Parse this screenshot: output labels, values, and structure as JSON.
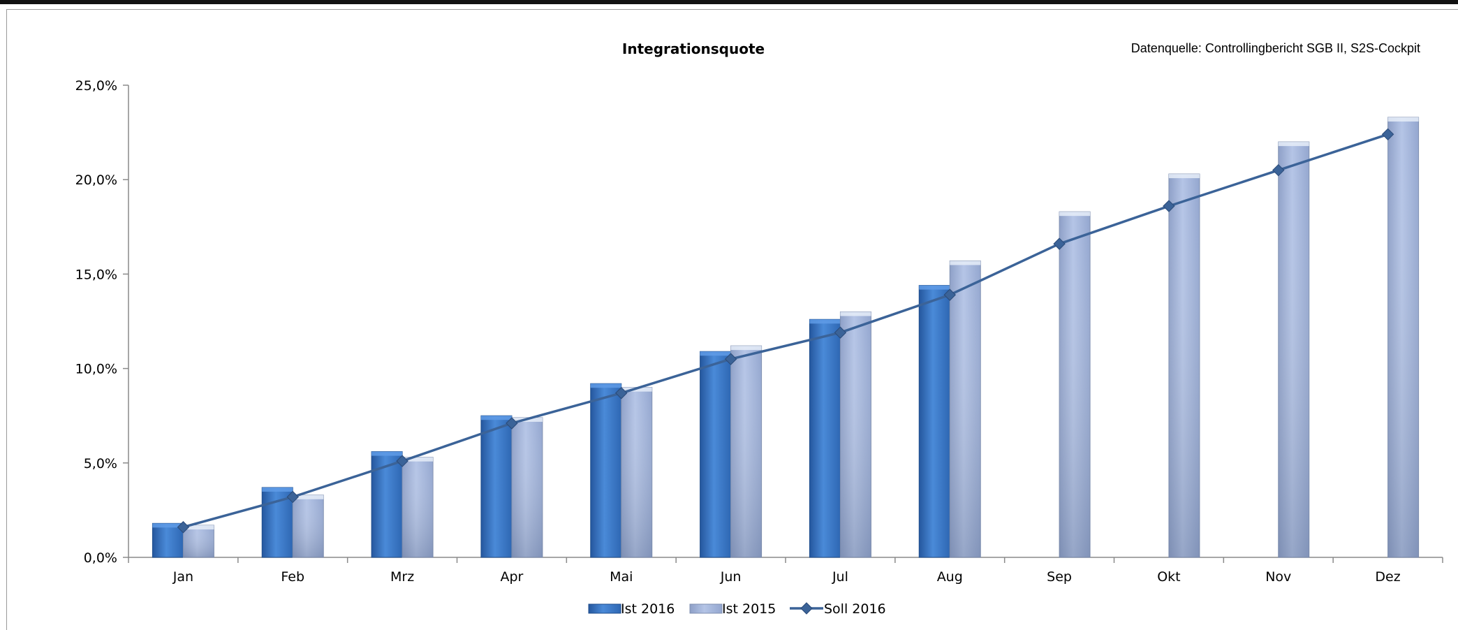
{
  "chart_data": {
    "type": "bar",
    "title": "Integrationsquote",
    "source_note": "Datenquelle: Controllingbericht SGB II, S2S-Cockpit",
    "xlabel": "",
    "ylabel": "",
    "categories": [
      "Jan",
      "Feb",
      "Mrz",
      "Apr",
      "Mai",
      "Jun",
      "Jul",
      "Aug",
      "Sep",
      "Okt",
      "Nov",
      "Dez"
    ],
    "ylim": [
      0,
      25
    ],
    "y_ticks": [
      0,
      5,
      10,
      15,
      20,
      25
    ],
    "y_tick_labels": [
      "0,0%",
      "5,0%",
      "10,0%",
      "15,0%",
      "20,0%",
      "25,0%"
    ],
    "grid": false,
    "legend_position": "bottom",
    "series": [
      {
        "name": "Ist 2016",
        "kind": "bar",
        "color": "#3a75c4",
        "values": [
          1.8,
          3.7,
          5.6,
          7.5,
          9.2,
          10.9,
          12.6,
          14.4,
          null,
          null,
          null,
          null
        ]
      },
      {
        "name": "Ist 2015",
        "kind": "bar",
        "color": "#a8b9de",
        "values": [
          1.7,
          3.3,
          5.3,
          7.4,
          9.0,
          11.2,
          13.0,
          15.7,
          18.3,
          20.3,
          22.0,
          23.3
        ]
      },
      {
        "name": "Soll 2016",
        "kind": "line",
        "color": "#3b6398",
        "values": [
          1.6,
          3.2,
          5.1,
          7.1,
          8.7,
          10.5,
          11.9,
          13.9,
          16.6,
          18.6,
          20.5,
          22.4
        ]
      }
    ]
  }
}
